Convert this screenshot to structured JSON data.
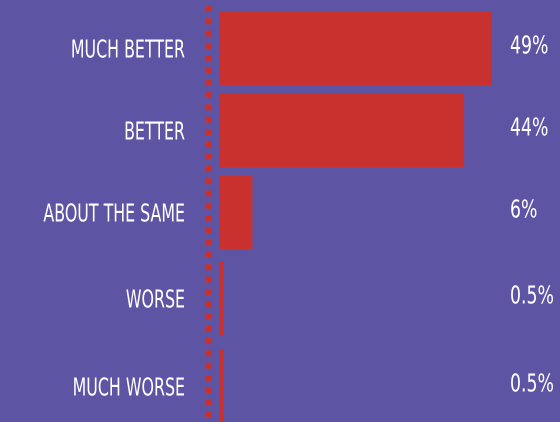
{
  "chart_data": {
    "type": "bar",
    "orientation": "horizontal",
    "categories": [
      "MUCH BETTER",
      "BETTER",
      "ABOUT THE SAME",
      "WORSE",
      "MUCH WORSE"
    ],
    "values": [
      49,
      44,
      6,
      0.5,
      0.5
    ],
    "value_labels": [
      "49%",
      "44%",
      "6%",
      "0.5%",
      "0.5%"
    ],
    "unit": "%",
    "xlim": [
      0,
      49
    ],
    "grid": false,
    "legend": "none"
  },
  "colors": {
    "background": "#5d55a4",
    "bar": "#c8312e",
    "axis_dots": "#c8312e",
    "text": "#ffffff"
  }
}
